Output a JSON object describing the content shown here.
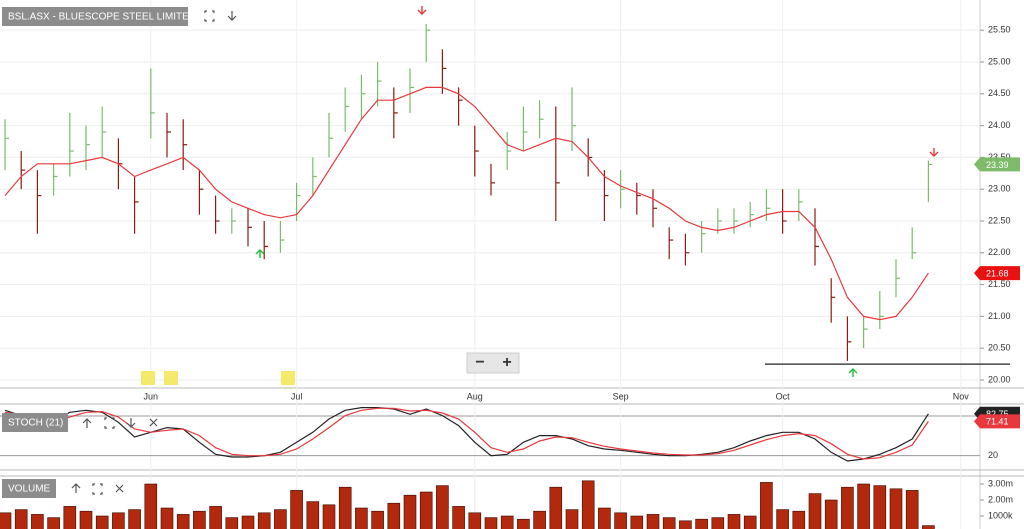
{
  "chart_data": [
    {
      "type": "ohlc",
      "title": "BSL.ASX - BLUESCOPE STEEL LIMITED",
      "categories": [
        null,
        null,
        null,
        null,
        null,
        null,
        null,
        null,
        null,
        "Jun",
        null,
        null,
        null,
        null,
        null,
        null,
        null,
        null,
        "Jul",
        null,
        null,
        null,
        null,
        null,
        null,
        null,
        null,
        null,
        null,
        "Aug",
        null,
        null,
        null,
        null,
        null,
        null,
        null,
        null,
        "Sep",
        null,
        null,
        null,
        null,
        null,
        null,
        null,
        null,
        null,
        "Oct",
        null,
        null,
        null,
        null,
        null,
        null,
        null,
        null,
        null,
        null,
        "Nov"
      ],
      "high": [
        24.1,
        23.6,
        23.3,
        23.4,
        24.2,
        24.0,
        24.3,
        23.8,
        23.2,
        24.9,
        24.2,
        24.1,
        23.3,
        22.9,
        22.7,
        22.7,
        22.5,
        22.5,
        23.1,
        23.5,
        24.2,
        24.6,
        24.8,
        25.0,
        24.6,
        24.9,
        25.6,
        25.2,
        24.6,
        24.0,
        23.4,
        23.9,
        24.3,
        24.4,
        24.3,
        24.6,
        23.8,
        23.3,
        23.3,
        23.1,
        23.0,
        22.4,
        22.3,
        22.5,
        22.7,
        22.7,
        22.8,
        23.0,
        23.0,
        23.0,
        22.7,
        21.6,
        21.0,
        21.0,
        21.4,
        21.9,
        22.4,
        23.45,
        null,
        null
      ],
      "low": [
        23.3,
        23.0,
        22.3,
        22.9,
        23.2,
        23.3,
        23.5,
        23.0,
        22.3,
        23.8,
        23.5,
        23.3,
        22.6,
        22.3,
        22.3,
        22.1,
        21.9,
        22.0,
        22.5,
        22.9,
        23.5,
        23.9,
        24.1,
        24.3,
        23.8,
        24.2,
        25.0,
        24.5,
        24.0,
        23.2,
        22.9,
        23.3,
        23.6,
        23.8,
        22.5,
        23.6,
        23.2,
        22.5,
        22.7,
        22.6,
        22.4,
        21.9,
        21.8,
        22.0,
        22.3,
        22.3,
        22.4,
        22.5,
        22.3,
        22.5,
        21.8,
        20.9,
        20.3,
        20.5,
        20.8,
        21.3,
        21.9,
        22.8,
        null,
        null
      ],
      "close": [
        23.8,
        23.3,
        22.9,
        23.2,
        23.6,
        23.7,
        23.9,
        23.4,
        22.8,
        24.2,
        23.9,
        23.7,
        23.0,
        22.5,
        22.5,
        22.4,
        22.1,
        22.2,
        22.9,
        23.2,
        23.8,
        24.3,
        24.5,
        24.7,
        24.2,
        24.6,
        25.5,
        24.9,
        24.4,
        23.6,
        23.1,
        23.6,
        23.9,
        24.1,
        23.1,
        24.0,
        23.5,
        22.9,
        23.0,
        22.9,
        22.7,
        22.2,
        22.0,
        22.3,
        22.5,
        22.5,
        22.6,
        22.7,
        22.5,
        22.8,
        22.1,
        21.3,
        20.6,
        20.8,
        21.0,
        21.6,
        22.0,
        23.39,
        null,
        null
      ],
      "up_color": "#7dbb6a",
      "down_color": "#8b1a10",
      "ma": {
        "color": "#e8383d",
        "values": [
          22.9,
          23.2,
          23.4,
          23.4,
          23.4,
          23.45,
          23.5,
          23.4,
          23.2,
          23.3,
          23.4,
          23.5,
          23.3,
          23.0,
          22.8,
          22.7,
          22.6,
          22.55,
          22.6,
          22.9,
          23.3,
          23.7,
          24.1,
          24.4,
          24.4,
          24.5,
          24.6,
          24.6,
          24.5,
          24.3,
          24.0,
          23.7,
          23.6,
          23.7,
          23.8,
          23.75,
          23.5,
          23.2,
          23.05,
          22.95,
          22.85,
          22.7,
          22.5,
          22.4,
          22.35,
          22.4,
          22.5,
          22.6,
          22.65,
          22.65,
          22.4,
          21.9,
          21.3,
          21.0,
          20.95,
          21.0,
          21.3,
          21.68,
          null,
          null
        ]
      },
      "ylim": [
        19.874,
        25.975
      ],
      "yticks": [
        {
          "value": 20,
          "label": "20.00"
        },
        {
          "value": 20.5,
          "label": "20.50"
        },
        {
          "value": 21,
          "label": "21.00"
        },
        {
          "value": 21.5,
          "label": "21.50"
        },
        {
          "value": 22,
          "label": "22.00"
        },
        {
          "value": 22.5,
          "label": "22.50"
        },
        {
          "value": 23,
          "label": "23.00"
        },
        {
          "value": 23.5,
          "label": "23.50"
        },
        {
          "value": 24,
          "label": "24.00"
        },
        {
          "value": 24.5,
          "label": "24.50"
        },
        {
          "value": 25,
          "label": "25.00"
        },
        {
          "value": 25.5,
          "label": "25.50"
        }
      ],
      "hline": 20.25,
      "grid": true
    },
    {
      "type": "line",
      "title": "STOCH (21)",
      "series": [
        {
          "color": "#222222",
          "values": [
            88,
            80,
            70,
            72,
            85,
            88,
            85,
            70,
            48,
            55,
            62,
            60,
            40,
            22,
            18,
            18,
            20,
            25,
            40,
            55,
            75,
            88,
            92,
            92,
            90,
            82,
            90,
            80,
            65,
            40,
            20,
            22,
            40,
            50,
            50,
            45,
            35,
            30,
            28,
            25,
            22,
            20,
            20,
            22,
            25,
            32,
            42,
            50,
            55,
            55,
            45,
            25,
            12,
            15,
            22,
            32,
            45,
            82.75,
            null,
            null
          ]
        },
        {
          "color": "#e8383d",
          "values": [
            85,
            82,
            75,
            70,
            78,
            85,
            86,
            78,
            60,
            55,
            58,
            60,
            50,
            32,
            22,
            20,
            20,
            22,
            30,
            45,
            62,
            80,
            88,
            91,
            91,
            87,
            88,
            84,
            75,
            55,
            32,
            25,
            30,
            42,
            48,
            47,
            40,
            34,
            30,
            27,
            24,
            22,
            21,
            21,
            23,
            28,
            36,
            44,
            50,
            53,
            50,
            38,
            22,
            15,
            17,
            25,
            36,
            71.41,
            null,
            null
          ]
        }
      ],
      "ylim": [
        0,
        100
      ],
      "yticks": [
        20
      ]
    },
    {
      "type": "bar",
      "title": "VOLUME",
      "values": [
        1200000,
        1400000,
        1100000,
        900000,
        1600000,
        1300000,
        1000000,
        1200000,
        1400000,
        3000000,
        1500000,
        1100000,
        1300000,
        1600000,
        900000,
        1000000,
        1200000,
        1400000,
        2600000,
        1900000,
        1700000,
        2800000,
        1500000,
        1300000,
        1800000,
        2300000,
        2500000,
        2900000,
        1600000,
        1200000,
        900000,
        1000000,
        800000,
        1300000,
        2800000,
        1400000,
        3200000,
        1500000,
        1200000,
        1000000,
        1100000,
        900000,
        700000,
        800000,
        900000,
        1100000,
        1000000,
        3100000,
        1400000,
        1300000,
        2400000,
        2000000,
        2800000,
        3000000,
        2900000,
        2700000,
        2600000,
        400000,
        null,
        null
      ],
      "color": "#b3290e",
      "ylim": [
        0,
        3300000
      ],
      "yticks": [
        {
          "value": 1000000,
          "label": "1000k"
        },
        {
          "value": 2000000,
          "label": "2.00m"
        },
        {
          "value": 3000000,
          "label": "3.00m"
        }
      ]
    }
  ],
  "controls": {
    "zoom_out": "−",
    "zoom_in": "+"
  }
}
